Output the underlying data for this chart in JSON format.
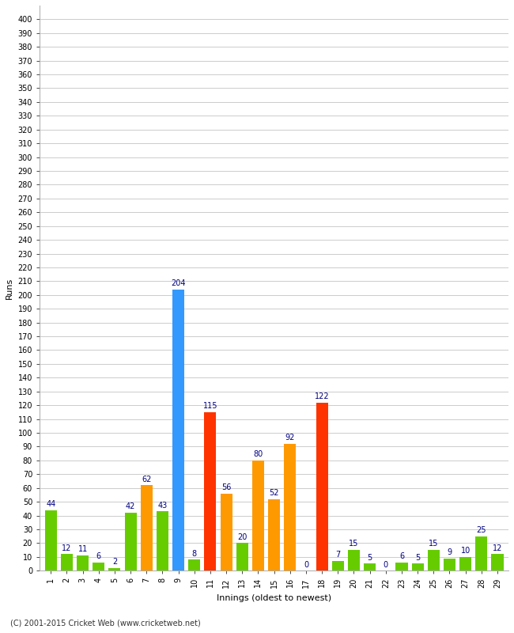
{
  "xlabel": "Innings (oldest to newest)",
  "ylabel": "Runs",
  "innings": [
    1,
    2,
    3,
    4,
    5,
    6,
    7,
    8,
    9,
    10,
    11,
    12,
    13,
    14,
    15,
    16,
    17,
    18,
    19,
    20,
    21,
    22,
    23,
    24,
    25,
    26,
    27,
    28,
    29
  ],
  "values": [
    44,
    12,
    11,
    6,
    2,
    42,
    62,
    43,
    204,
    8,
    115,
    56,
    20,
    80,
    52,
    92,
    0,
    122,
    7,
    15,
    5,
    0,
    6,
    5,
    15,
    9,
    10,
    25,
    12
  ],
  "colors": [
    "#66cc00",
    "#66cc00",
    "#66cc00",
    "#66cc00",
    "#66cc00",
    "#66cc00",
    "#ff9900",
    "#66cc00",
    "#3399ff",
    "#66cc00",
    "#ff3300",
    "#ff9900",
    "#66cc00",
    "#ff9900",
    "#ff9900",
    "#ff9900",
    "#ff9900",
    "#ff3300",
    "#66cc00",
    "#66cc00",
    "#66cc00",
    "#66cc00",
    "#66cc00",
    "#66cc00",
    "#66cc00",
    "#66cc00",
    "#66cc00",
    "#66cc00",
    "#66cc00"
  ],
  "ylim": [
    0,
    410
  ],
  "ytick_min": 0,
  "ytick_max": 400,
  "ytick_step": 10,
  "bg_color": "#ffffff",
  "grid_color": "#cccccc",
  "label_color": "#000080",
  "bar_label_fontsize": 7,
  "axis_tick_fontsize": 7,
  "axis_label_fontsize": 8,
  "footer": "(C) 2001-2015 Cricket Web (www.cricketweb.net)",
  "footer_fontsize": 7,
  "bar_width": 0.75
}
